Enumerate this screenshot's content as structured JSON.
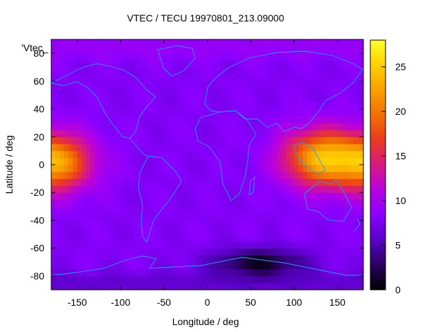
{
  "chart_data": {
    "type": "heatmap",
    "title": "VTEC / TECU 19970801_213.09000",
    "xlabel": "Longitude / deg",
    "ylabel": "Latitude / deg",
    "series_key_label": "'Vtec_",
    "xlim": [
      -180,
      180
    ],
    "ylim": [
      -90,
      90
    ],
    "x_ticks": [
      -150,
      -100,
      -50,
      0,
      50,
      100,
      150
    ],
    "y_ticks": [
      -80,
      -60,
      -40,
      -20,
      0,
      20,
      40,
      60,
      80
    ],
    "colorbar": {
      "range": [
        0,
        28
      ],
      "ticks": [
        0,
        5,
        10,
        15,
        20,
        25
      ],
      "palette": [
        "#000000",
        "#2a0060",
        "#5a00c8",
        "#8a00ff",
        "#b800e0",
        "#d81a80",
        "#ea3a20",
        "#f27000",
        "#f8a000",
        "#ffd000",
        "#ffff30"
      ]
    },
    "features": [
      {
        "name": "equatorial-anomaly-east",
        "lon": 128,
        "lat": 5,
        "vtec": 22
      },
      {
        "name": "equatorial-anomaly-west",
        "lon": -175,
        "lat": 2,
        "vtec": 22
      },
      {
        "name": "antarctic-minimum",
        "lon": 60,
        "lat": -70,
        "vtec": 1
      },
      {
        "name": "background",
        "vtec": 8
      }
    ],
    "grid": false,
    "legend": "none",
    "overlay": "coastlines (cyan)"
  }
}
